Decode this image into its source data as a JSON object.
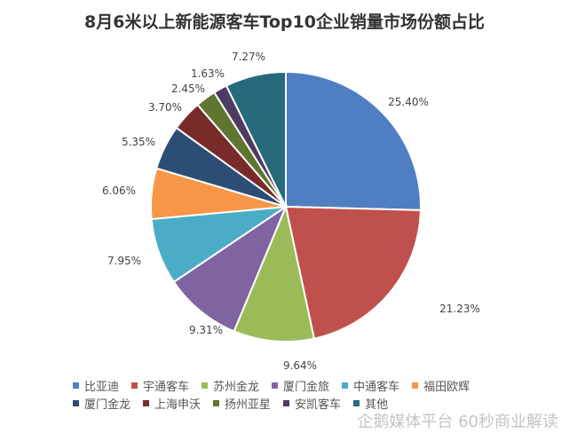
{
  "chart_data": {
    "type": "pie",
    "title": "8月6米以上新能源客车Top10企业销量市场份额占比",
    "categories": [
      "比亚迪",
      "宇通客车",
      "苏州金龙",
      "厦门金旅",
      "中通客车",
      "福田欧辉",
      "厦门金龙",
      "上海申沃",
      "扬州亚星",
      "安凯客车",
      "其他"
    ],
    "values": [
      25.4,
      21.23,
      9.64,
      9.31,
      7.95,
      6.06,
      5.35,
      3.7,
      2.45,
      1.63,
      7.27
    ],
    "labels": [
      "25.40%",
      "21.23%",
      "9.64%",
      "9.31%",
      "7.95%",
      "6.06%",
      "5.35%",
      "3.70%",
      "2.45%",
      "1.63%",
      "7.27%"
    ],
    "colors": [
      "#4f7fc2",
      "#c0504d",
      "#9bbb59",
      "#8064a2",
      "#4bacc6",
      "#f79646",
      "#2c4d75",
      "#772c2a",
      "#5f7530",
      "#4d3b62",
      "#276a7c"
    ],
    "legend": "bottom"
  },
  "watermark": "企鹅媒体平台 60秒商业解读"
}
